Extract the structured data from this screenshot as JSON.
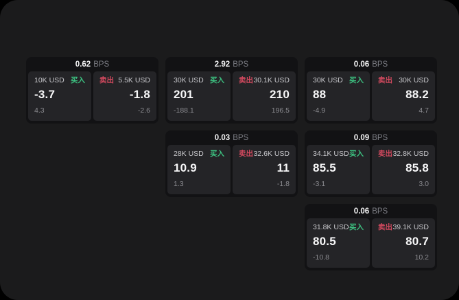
{
  "labels": {
    "bps_suffix": "BPS",
    "buy": "买入",
    "sell": "卖出"
  },
  "colors": {
    "surround": "#000000",
    "window_bg": "#1b1b1c",
    "card_bg": "#121214",
    "panel_bg": "#242427",
    "buy_accent": "#3dc281",
    "sell_accent": "#d1495e",
    "text_primary": "#f7f7f8",
    "text_muted": "#8b8b90"
  },
  "cards": [
    {
      "bps": "0.62",
      "row": 1,
      "col": 1,
      "buy": {
        "amount": "10K USD",
        "value": "-3.7",
        "delta": "4.3"
      },
      "sell": {
        "amount": "5.5K USD",
        "value": "-1.8",
        "delta": "-2.6"
      }
    },
    {
      "bps": "2.92",
      "row": 1,
      "col": 2,
      "buy": {
        "amount": "30K USD",
        "value": "201",
        "delta": "-188.1"
      },
      "sell": {
        "amount": "30.1K USD",
        "value": "210",
        "delta": "196.5"
      }
    },
    {
      "bps": "0.06",
      "row": 1,
      "col": 3,
      "buy": {
        "amount": "30K USD",
        "value": "88",
        "delta": "-4.9"
      },
      "sell": {
        "amount": "30K USD",
        "value": "88.2",
        "delta": "4.7"
      }
    },
    {
      "bps": "0.03",
      "row": 2,
      "col": 2,
      "buy": {
        "amount": "28K USD",
        "value": "10.9",
        "delta": "1.3"
      },
      "sell": {
        "amount": "32.6K USD",
        "value": "11",
        "delta": "-1.8"
      }
    },
    {
      "bps": "0.09",
      "row": 2,
      "col": 3,
      "buy": {
        "amount": "34.1K USD",
        "value": "85.5",
        "delta": "-3.1"
      },
      "sell": {
        "amount": "32.8K USD",
        "value": "85.8",
        "delta": "3.0"
      }
    },
    {
      "bps": "0.06",
      "row": 3,
      "col": 3,
      "buy": {
        "amount": "31.8K USD",
        "value": "80.5",
        "delta": "-10.8"
      },
      "sell": {
        "amount": "39.1K USD",
        "value": "80.7",
        "delta": "10.2"
      }
    }
  ]
}
